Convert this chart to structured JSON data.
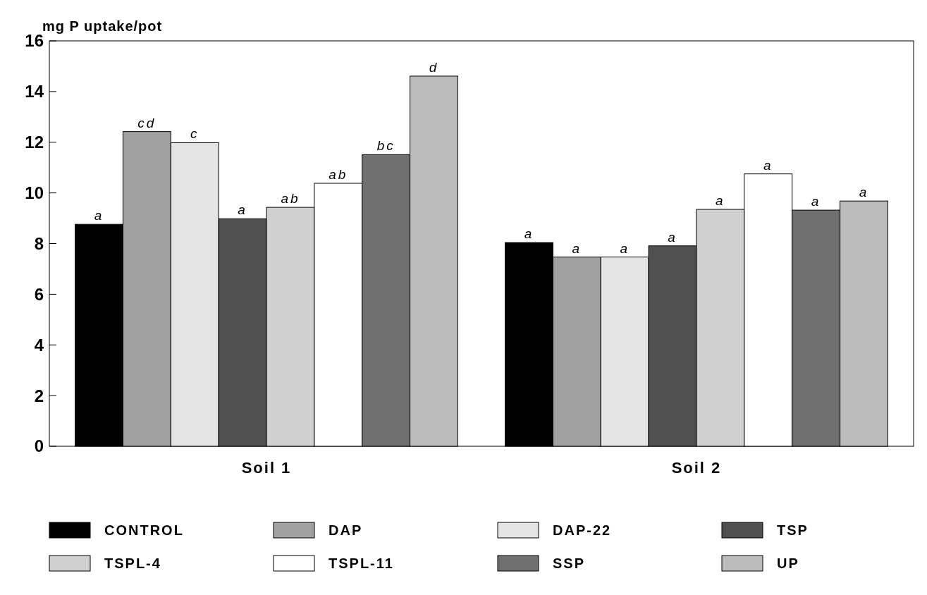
{
  "chart_data": {
    "type": "bar",
    "ylabel": "mg P uptake/pot",
    "categories": [
      "Soil 1",
      "Soil 2"
    ],
    "series": [
      {
        "name": "CONTROL",
        "color": "#000000",
        "values": [
          8.76,
          8.04
        ],
        "value_labels": [
          "a",
          "a"
        ]
      },
      {
        "name": "DAP",
        "color": "#a0a0a0",
        "values": [
          12.42,
          7.47
        ],
        "value_labels": [
          "cd",
          "a"
        ]
      },
      {
        "name": "DAP-22",
        "color": "#e4e4e4",
        "values": [
          11.98,
          7.47
        ],
        "value_labels": [
          "c",
          "a"
        ]
      },
      {
        "name": "TSP",
        "color": "#505050",
        "values": [
          8.98,
          7.91
        ],
        "value_labels": [
          "a",
          "a"
        ]
      },
      {
        "name": "TSPL-4",
        "color": "#d0d0d0",
        "values": [
          9.43,
          9.35
        ],
        "value_labels": [
          "ab",
          "a"
        ]
      },
      {
        "name": "TSPL-11",
        "color": "#ffffff",
        "values": [
          10.38,
          10.75
        ],
        "value_labels": [
          "ab",
          "a"
        ]
      },
      {
        "name": "SSP",
        "color": "#707070",
        "values": [
          11.51,
          9.32
        ],
        "value_labels": [
          "bc",
          "a"
        ]
      },
      {
        "name": "UP",
        "color": "#bcbcbc",
        "values": [
          14.61,
          9.68
        ],
        "value_labels": [
          "d",
          "a"
        ]
      }
    ],
    "ylim": [
      0,
      16
    ],
    "yticks": [
      0,
      2,
      4,
      6,
      8,
      10,
      12,
      14,
      16
    ],
    "legend": "bottom",
    "grid": false
  }
}
